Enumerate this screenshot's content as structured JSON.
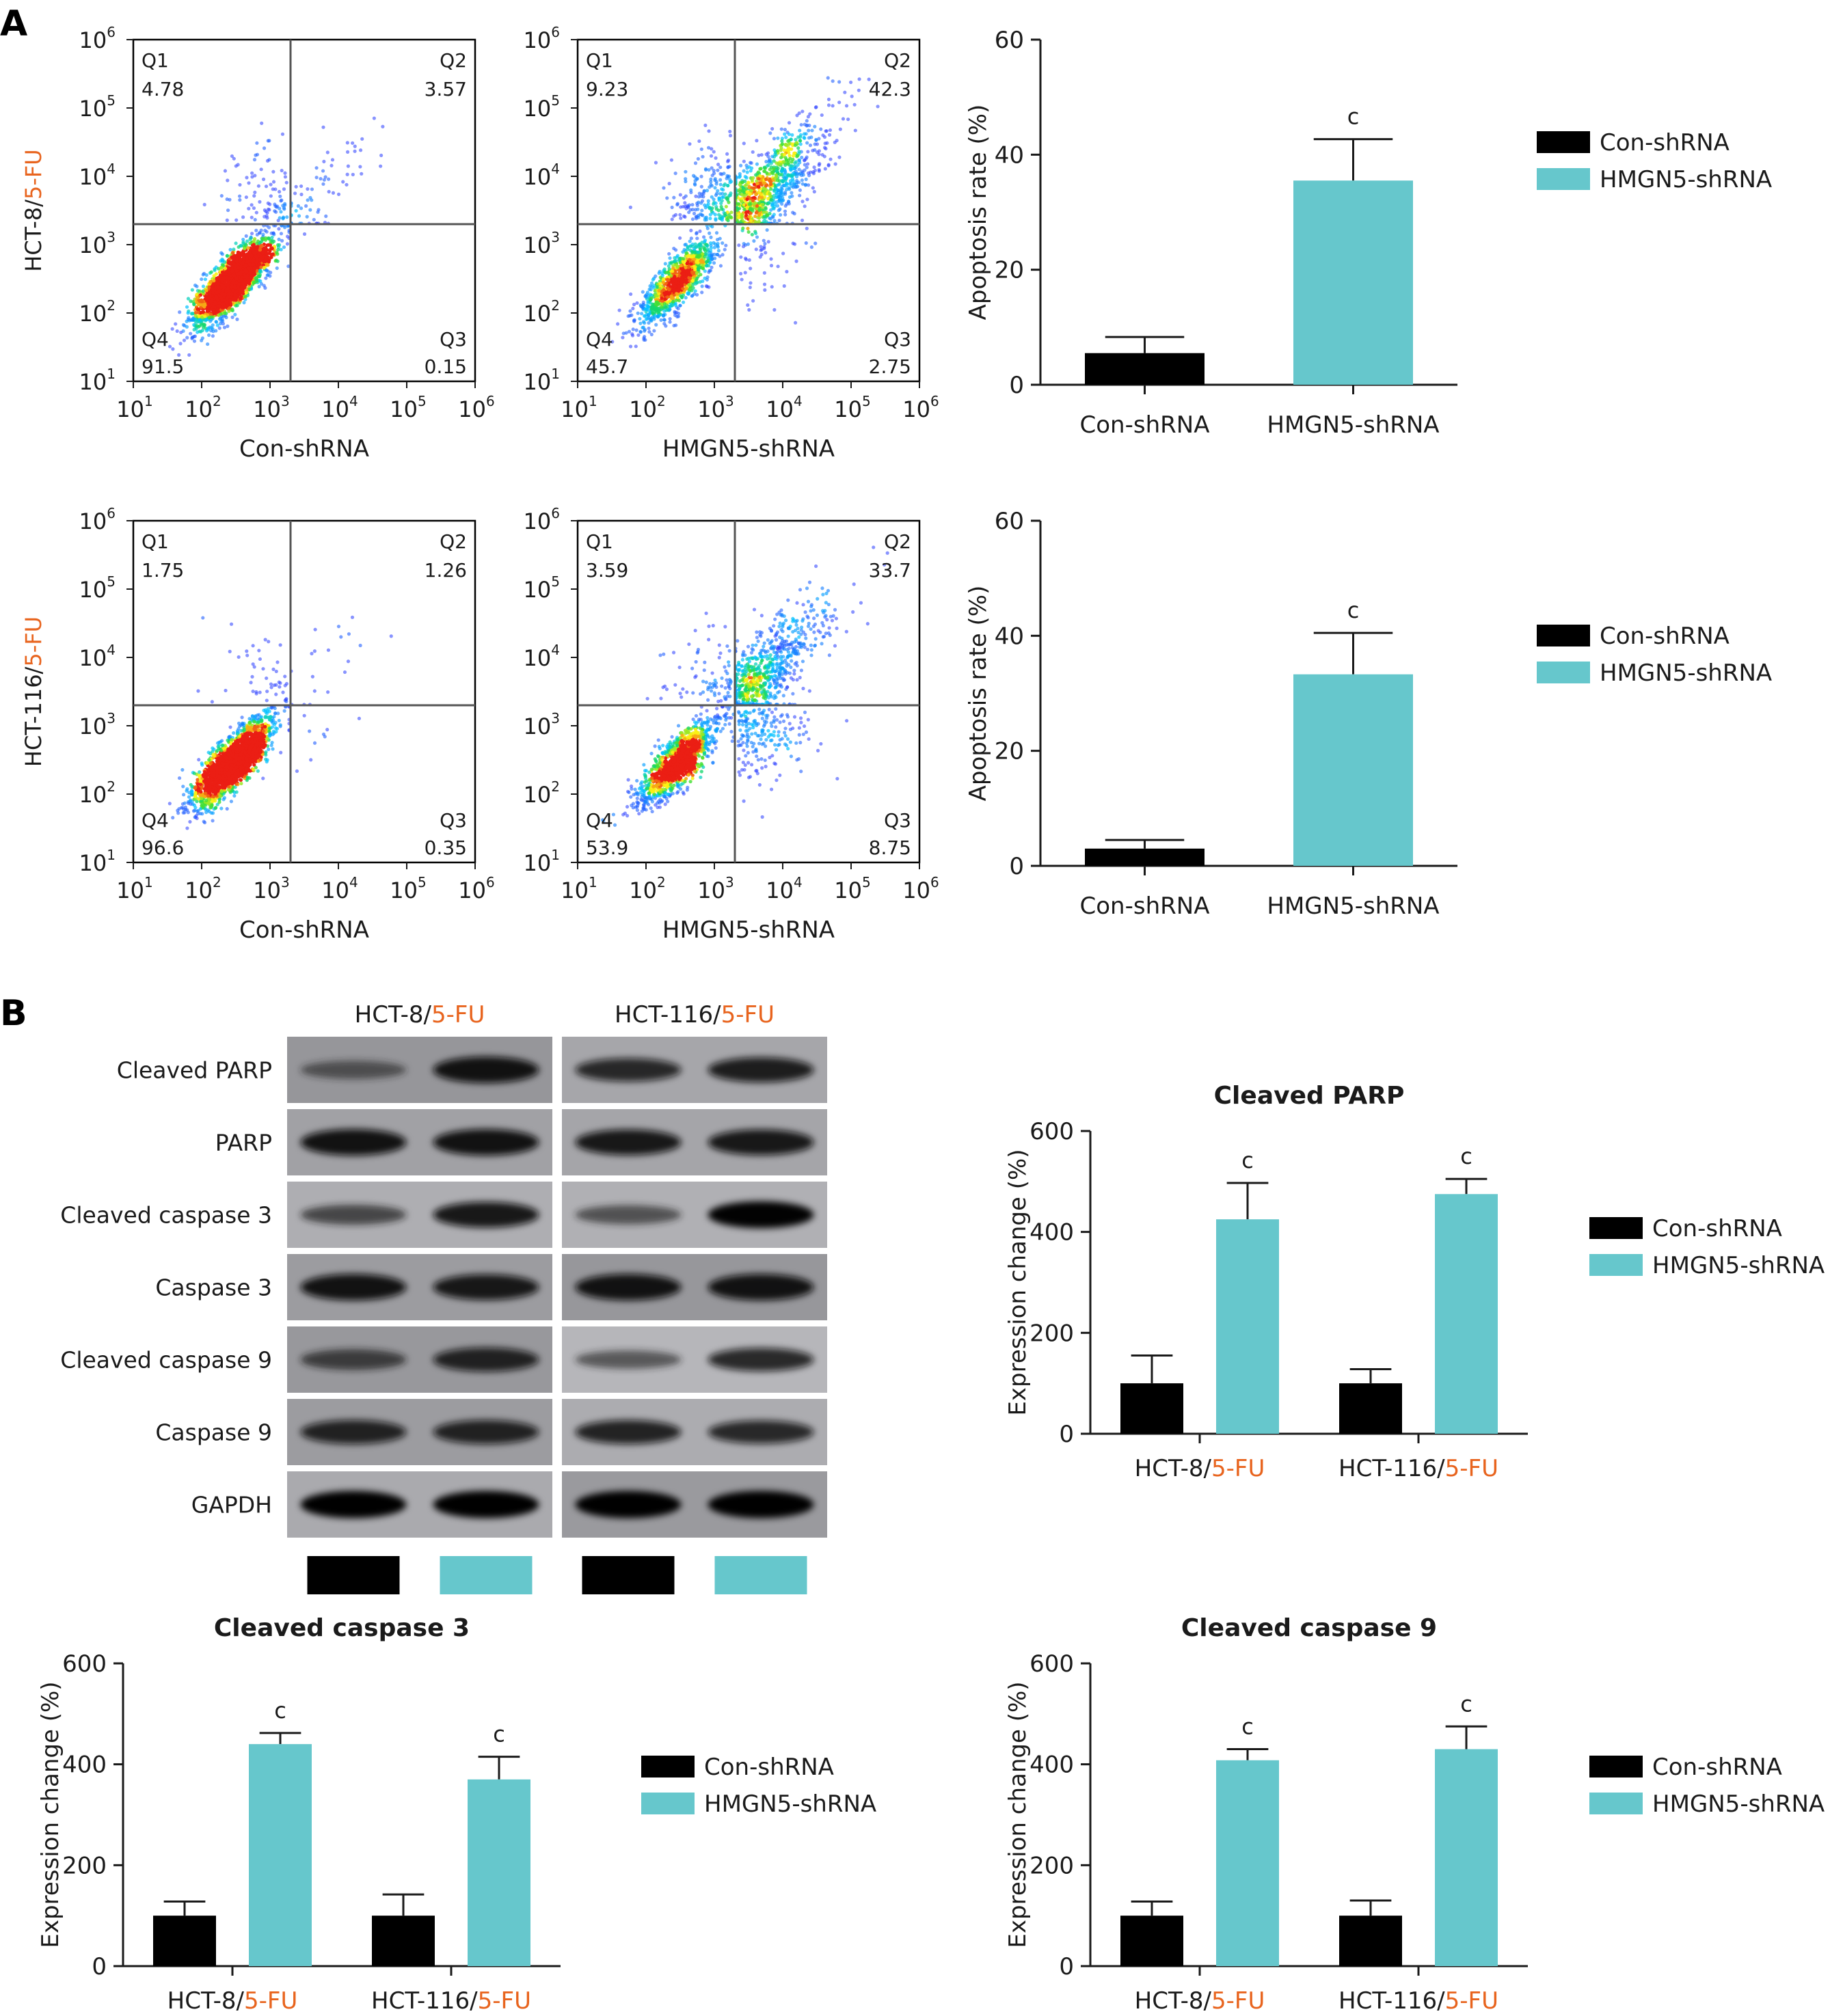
{
  "colors": {
    "con": "#000000",
    "hmgn5": "#66c7cc",
    "highlight": "#e8641e",
    "axis": "#1a1a1a",
    "quad_line": "#555555",
    "panel_border": "#000000"
  },
  "panels": {
    "a_label": "A",
    "b_label": "B"
  },
  "flow": {
    "tick_base": "10",
    "y_exponents": [
      "1",
      "2",
      "3",
      "4",
      "5",
      "6"
    ],
    "x_exponents": [
      "1",
      "2",
      "3",
      "4",
      "5",
      "6"
    ],
    "row_labels": [
      {
        "prefix": "HCT-8/",
        "suffix": "5-FU"
      },
      {
        "prefix": "HCT-116/",
        "suffix": "5-FU"
      }
    ],
    "plots": [
      {
        "row": 0,
        "col": 0,
        "xlabel": "Con-shRNA",
        "q1": "4.78",
        "q2": "3.57",
        "q3": "0.15",
        "q4": "91.5",
        "gate_x": 3.3,
        "gate_y": 3.3
      },
      {
        "row": 0,
        "col": 1,
        "xlabel": "HMGN5-shRNA",
        "q1": "9.23",
        "q2": "42.3",
        "q3": "2.75",
        "q4": "45.7",
        "gate_x": 3.3,
        "gate_y": 3.3
      },
      {
        "row": 1,
        "col": 0,
        "xlabel": "Con-shRNA",
        "q1": "1.75",
        "q2": "1.26",
        "q3": "0.35",
        "q4": "96.6",
        "gate_x": 3.3,
        "gate_y": 3.3
      },
      {
        "row": 1,
        "col": 1,
        "xlabel": "HMGN5-shRNA",
        "q1": "3.59",
        "q2": "33.7",
        "q3": "8.75",
        "q4": "53.9",
        "gate_x": 3.3,
        "gate_y": 3.3
      }
    ],
    "quadrant_names": {
      "q1": "Q1",
      "q2": "Q2",
      "q3": "Q3",
      "q4": "Q4"
    }
  },
  "chart_data": [
    {
      "type": "bar",
      "title": "",
      "ylabel": "Apoptosis rate (%)",
      "ylim": [
        0,
        60
      ],
      "yticks": [
        0,
        20,
        40,
        60
      ],
      "categories": [
        "Con-shRNA",
        "HMGN5-shRNA"
      ],
      "values": [
        5.5,
        35.5
      ],
      "errors": [
        2.8,
        7.2
      ],
      "sig": [
        "",
        "c"
      ],
      "legend": [
        "Con-shRNA",
        "HMGN5-shRNA"
      ],
      "legend_position": "right"
    },
    {
      "type": "bar",
      "title": "",
      "ylabel": "Apoptosis rate (%)",
      "ylim": [
        0,
        60
      ],
      "yticks": [
        0,
        20,
        40,
        60
      ],
      "categories": [
        "Con-shRNA",
        "HMGN5-shRNA"
      ],
      "values": [
        3,
        33.3
      ],
      "errors": [
        1.5,
        7.2
      ],
      "sig": [
        "",
        "c"
      ],
      "legend": [
        "Con-shRNA",
        "HMGN5-shRNA"
      ],
      "legend_position": "right"
    },
    {
      "type": "bar",
      "title": "Cleaved PARP",
      "ylabel": "Expression change (%)",
      "ylim": [
        0,
        600
      ],
      "yticks": [
        0,
        200,
        400,
        600
      ],
      "groups": [
        {
          "prefix": "HCT-8/",
          "suffix": "5-FU"
        },
        {
          "prefix": "HCT-116/",
          "suffix": "5-FU"
        }
      ],
      "series": [
        {
          "name": "Con-shRNA",
          "values": [
            100,
            100
          ],
          "errors": [
            55,
            28
          ]
        },
        {
          "name": "HMGN5-shRNA",
          "values": [
            425,
            475
          ],
          "errors": [
            72,
            30
          ]
        }
      ],
      "sig": [
        "c",
        "c"
      ],
      "legend_position": "right"
    },
    {
      "type": "bar",
      "title": "Cleaved caspase 3",
      "ylabel": "Expression change (%)",
      "ylim": [
        0,
        600
      ],
      "yticks": [
        0,
        200,
        400,
        600
      ],
      "groups": [
        {
          "prefix": "HCT-8/",
          "suffix": "5-FU"
        },
        {
          "prefix": "HCT-116/",
          "suffix": "5-FU"
        }
      ],
      "series": [
        {
          "name": "Con-shRNA",
          "values": [
            100,
            100
          ],
          "errors": [
            28,
            42
          ]
        },
        {
          "name": "HMGN5-shRNA",
          "values": [
            440,
            370
          ],
          "errors": [
            22,
            45
          ]
        }
      ],
      "sig": [
        "c",
        "c"
      ],
      "legend_position": "right"
    },
    {
      "type": "bar",
      "title": "Cleaved caspase 9",
      "ylabel": "Expression change (%)",
      "ylim": [
        0,
        600
      ],
      "yticks": [
        0,
        200,
        400,
        600
      ],
      "groups": [
        {
          "prefix": "HCT-8/",
          "suffix": "5-FU"
        },
        {
          "prefix": "HCT-116/",
          "suffix": "5-FU"
        }
      ],
      "series": [
        {
          "name": "Con-shRNA",
          "values": [
            100,
            100
          ],
          "errors": [
            28,
            30
          ]
        },
        {
          "name": "HMGN5-shRNA",
          "values": [
            408,
            430
          ],
          "errors": [
            22,
            45
          ]
        }
      ],
      "sig": [
        "c",
        "c"
      ],
      "legend_position": "right"
    }
  ],
  "western": {
    "header": [
      {
        "prefix": "HCT-8/",
        "suffix": "5-FU"
      },
      {
        "prefix": "HCT-116/",
        "suffix": "5-FU"
      }
    ],
    "bands": [
      {
        "label": "Cleaved PARP",
        "intensity": [
          0.45,
          0.95,
          0.75,
          0.85
        ]
      },
      {
        "label": "PARP",
        "intensity": [
          0.95,
          0.95,
          0.9,
          0.9
        ]
      },
      {
        "label": "Cleaved caspase 3",
        "intensity": [
          0.55,
          0.9,
          0.5,
          0.98
        ]
      },
      {
        "label": "Caspase 3",
        "intensity": [
          0.95,
          0.9,
          0.95,
          0.95
        ]
      },
      {
        "label": "Cleaved caspase 9",
        "intensity": [
          0.6,
          0.8,
          0.45,
          0.75
        ]
      },
      {
        "label": "Caspase 9",
        "intensity": [
          0.8,
          0.8,
          0.8,
          0.75
        ]
      },
      {
        "label": "GAPDH",
        "intensity": [
          1.0,
          1.0,
          1.0,
          1.0
        ]
      }
    ],
    "lane_groups": [
      "con",
      "hmgn5",
      "con",
      "hmgn5"
    ]
  }
}
